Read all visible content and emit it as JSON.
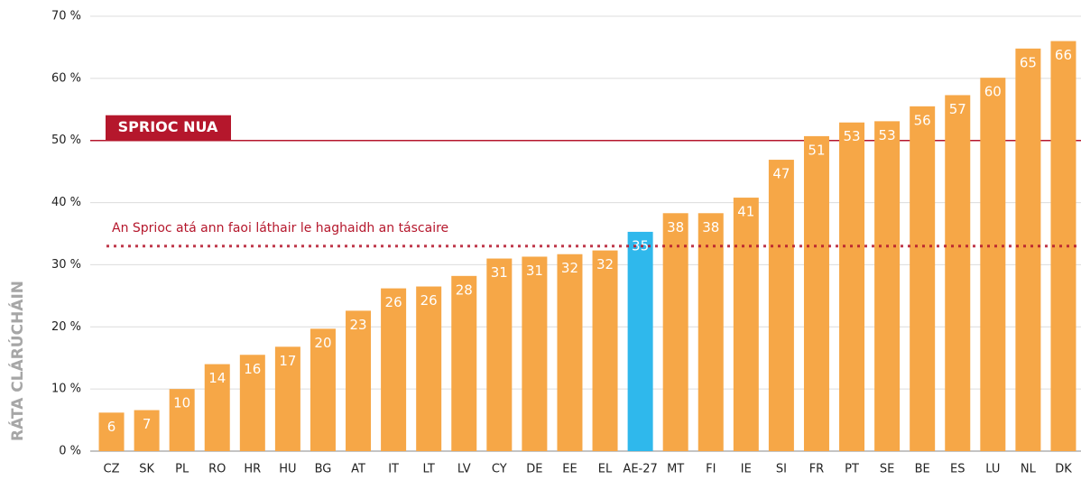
{
  "chart_data": {
    "type": "bar",
    "y_label": "RÁTA CLÁRÚCHÁIN",
    "categories": [
      "CZ",
      "SK",
      "PL",
      "RO",
      "HR",
      "HU",
      "BG",
      "AT",
      "IT",
      "LT",
      "LV",
      "CY",
      "DE",
      "EE",
      "EL",
      "AE-27",
      "MT",
      "FI",
      "IE",
      "SI",
      "FR",
      "PT",
      "SE",
      "BE",
      "ES",
      "LU",
      "NL",
      "DK"
    ],
    "values": [
      6.2,
      6.6,
      10.0,
      14.0,
      15.5,
      16.8,
      19.7,
      22.6,
      26.2,
      26.5,
      28.2,
      31.0,
      31.3,
      31.7,
      32.3,
      35.3,
      38.3,
      38.3,
      40.8,
      46.9,
      50.7,
      52.9,
      53.1,
      55.5,
      57.3,
      60.1,
      64.8,
      66.0
    ],
    "value_labels": [
      "6",
      "7",
      "10",
      "14",
      "16",
      "17",
      "20",
      "23",
      "26",
      "26",
      "28",
      "31",
      "31",
      "32",
      "32",
      "35",
      "38",
      "38",
      "41",
      "47",
      "51",
      "53",
      "53",
      "56",
      "57",
      "60",
      "65",
      "66"
    ],
    "color": "#f6a747",
    "highlight": {
      "category": "AE-27",
      "color": "#2fb8ec"
    },
    "ylim": [
      0,
      70
    ],
    "yticks": [
      {
        "value": 0,
        "label": "0 %"
      },
      {
        "value": 10,
        "label": "10 %"
      },
      {
        "value": 20,
        "label": "20 %"
      },
      {
        "value": 30,
        "label": "30 %"
      },
      {
        "value": 40,
        "label": "40 %"
      },
      {
        "value": 50,
        "label": "50 %"
      },
      {
        "value": 60,
        "label": "60 %"
      },
      {
        "value": 70,
        "label": "70 %"
      }
    ],
    "grid": true,
    "target_lines": [
      {
        "value": 50,
        "label": "SPRIOC NUA",
        "style": "solid",
        "color": "#b5172c"
      },
      {
        "value": 33,
        "label": "An Sprioc atá ann faoi láthair le haghaidh an táscaire",
        "style": "dotted",
        "color": "#b5172c"
      }
    ]
  }
}
